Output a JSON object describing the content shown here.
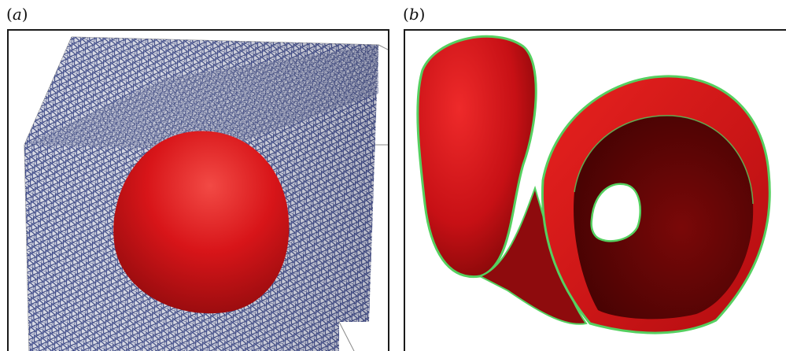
{
  "figure": {
    "panel_a": {
      "label_open": "(",
      "label_letter": "a",
      "label_close": ")"
    },
    "panel_b": {
      "label_open": "(",
      "label_letter": "b",
      "label_close": ")"
    }
  },
  "colors": {
    "mesh_blue": "#2d3a7a",
    "mesh_light": "#c9cbd8",
    "surface_red": "#d4141a",
    "surface_dark_red": "#6a0808",
    "outline_green": "#55d060"
  }
}
